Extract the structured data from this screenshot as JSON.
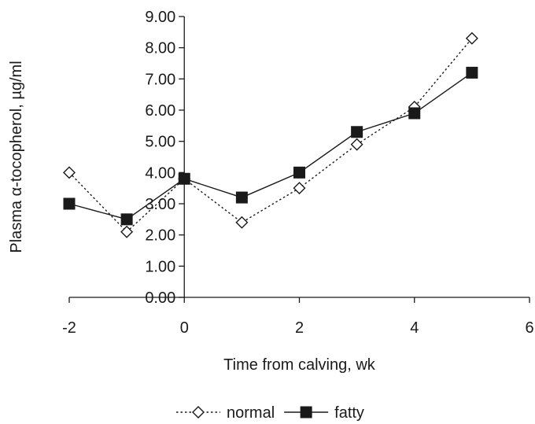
{
  "chart_data": {
    "type": "line",
    "title": "",
    "xlabel": "Time from calving, wk",
    "ylabel": "Plasma α-tocopherol, µg/ml",
    "xlim": [
      -2,
      6
    ],
    "ylim": [
      0,
      9
    ],
    "xticks": [
      -2,
      0,
      2,
      4,
      6
    ],
    "xtick_labels": [
      "-2",
      "0",
      "2",
      "4",
      "6"
    ],
    "yticks": [
      0,
      1,
      2,
      3,
      4,
      5,
      6,
      7,
      8,
      9
    ],
    "ytick_labels": [
      "0.00",
      "1.00",
      "2.00",
      "3.00",
      "4.00",
      "5.00",
      "6.00",
      "7.00",
      "8.00",
      "9.00"
    ],
    "grid": false,
    "legend_position": "bottom",
    "series": [
      {
        "name": "normal",
        "marker": "open-diamond",
        "line_style": "dotted",
        "color": "#1a1a1a",
        "x": [
          -2,
          -1,
          0,
          1,
          2,
          3,
          4,
          5
        ],
        "y": [
          4.0,
          2.1,
          3.8,
          2.4,
          3.5,
          4.9,
          6.1,
          8.3
        ]
      },
      {
        "name": "fatty",
        "marker": "filled-square",
        "line_style": "solid",
        "color": "#1a1a1a",
        "x": [
          -2,
          -1,
          0,
          1,
          2,
          3,
          4,
          5
        ],
        "y": [
          3.0,
          2.5,
          3.8,
          3.2,
          4.0,
          5.3,
          5.9,
          7.2
        ]
      }
    ]
  }
}
